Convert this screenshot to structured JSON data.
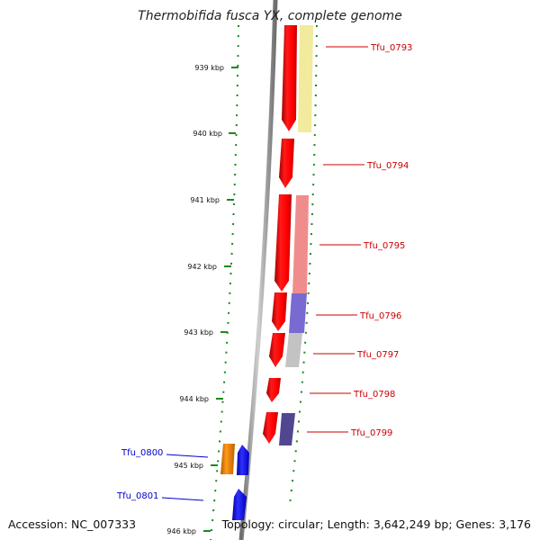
{
  "title": "Thermobifida fusca YX, complete genome",
  "accession": "Accession: NC_007333",
  "summary": "Topology: circular; Length: 3,642,249 bp; Genes: 3,176",
  "scale_labels": [
    "939 kbp",
    "940 kbp",
    "941 kbp",
    "942 kbp",
    "943 kbp",
    "944 kbp",
    "945 kbp",
    "946 kbp"
  ],
  "colors": {
    "backbone": "#8c8c8c",
    "tick_dots": "#1a8a1a",
    "forward_gene": "#ff0000",
    "reverse_gene": "#1a1aff",
    "label_forward": "#cc0000",
    "label_reverse": "#0000cc"
  },
  "genes": [
    {
      "label": "Tfu_0793",
      "strand": "forward",
      "cog_color": "#f0e68c"
    },
    {
      "label": "Tfu_0794",
      "strand": "forward",
      "cog_color": ""
    },
    {
      "label": "Tfu_0795",
      "strand": "forward",
      "cog_color": "#f08080"
    },
    {
      "label": "Tfu_0796",
      "strand": "forward",
      "cog_color": "#6a5acd"
    },
    {
      "label": "Tfu_0797",
      "strand": "forward",
      "cog_color": "#bdbdbd"
    },
    {
      "label": "Tfu_0798",
      "strand": "forward",
      "cog_color": ""
    },
    {
      "label": "Tfu_0799",
      "strand": "forward",
      "cog_color": "#483d8b"
    },
    {
      "label": "Tfu_0800",
      "strand": "reverse",
      "cog_color": "#ff8c00"
    },
    {
      "label": "Tfu_0801",
      "strand": "reverse",
      "cog_color": ""
    }
  ]
}
